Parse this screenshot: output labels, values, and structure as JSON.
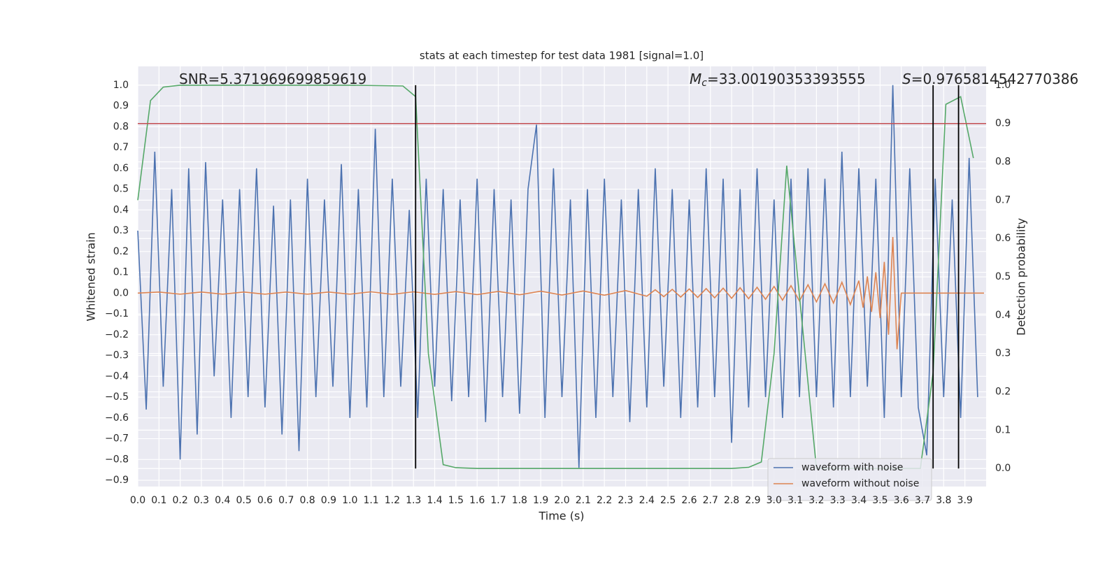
{
  "chart_data": {
    "type": "line",
    "title": "stats at each timestep for test data 1981 [signal=1.0]",
    "xlabel": "Time (s)",
    "ylabel": "Whitened strain",
    "y2label": "Detection probability",
    "xlim": [
      0,
      4.0
    ],
    "ylim": [
      -0.93,
      1.09
    ],
    "y2lim": [
      -0.047,
      1.049
    ],
    "grid": true,
    "legend": "lower right",
    "xticks": [
      {
        "value": 0,
        "label": "0.0"
      },
      0.1,
      0.2,
      0.3,
      0.4,
      0.5,
      0.6,
      0.7,
      0.8,
      0.9,
      {
        "value": 1,
        "label": "1.0"
      },
      1.1,
      1.2,
      1.3,
      1.4,
      1.5,
      1.6,
      1.7,
      1.8,
      1.9,
      {
        "value": 2,
        "label": "2.0"
      },
      2.1,
      2.2,
      2.3,
      2.4,
      2.5,
      2.6,
      2.7,
      2.8,
      2.9,
      {
        "value": 3,
        "label": "3.0"
      },
      3.1,
      3.2,
      3.3,
      3.4,
      3.5,
      3.6,
      3.7,
      3.8,
      3.9
    ],
    "yticks": [
      {
        "value": 1,
        "label": "1.0"
      },
      0.9,
      0.8,
      0.7,
      0.6,
      0.5,
      0.4,
      0.3,
      0.2,
      0.1,
      {
        "value": 0,
        "label": "0.0"
      },
      {
        "value": -0.1,
        "label": "−0.1"
      },
      {
        "value": -0.2,
        "label": "−0.2"
      },
      {
        "value": -0.3,
        "label": "−0.3"
      },
      {
        "value": -0.4,
        "label": "−0.4"
      },
      {
        "value": -0.5,
        "label": "−0.5"
      },
      {
        "value": -0.6,
        "label": "−0.6"
      },
      {
        "value": -0.7,
        "label": "−0.7"
      },
      {
        "value": -0.8,
        "label": "−0.8"
      },
      {
        "value": -0.9,
        "label": "−0.9"
      }
    ],
    "y2ticks": [
      {
        "value": 0,
        "label": "0.0"
      },
      0.1,
      0.2,
      0.3,
      0.4,
      0.5,
      0.6,
      0.7,
      0.8,
      0.9,
      {
        "value": 1,
        "label": "1.0"
      }
    ],
    "series": [
      {
        "name": "waveform with noise",
        "color": "#4c72b0",
        "x": [
          0,
          0.04,
          0.08,
          0.12,
          0.16,
          0.2,
          0.24,
          0.28,
          0.32,
          0.36,
          0.4,
          0.44,
          0.48,
          0.52,
          0.56,
          0.6,
          0.64,
          0.68,
          0.72,
          0.76,
          0.8,
          0.84,
          0.88,
          0.92,
          0.96,
          1.0,
          1.04,
          1.08,
          1.12,
          1.16,
          1.2,
          1.24,
          1.28,
          1.32,
          1.36,
          1.4,
          1.44,
          1.48,
          1.52,
          1.56,
          1.6,
          1.64,
          1.68,
          1.72,
          1.76,
          1.8,
          1.84,
          1.88,
          1.92,
          1.96,
          2.0,
          2.04,
          2.08,
          2.12,
          2.16,
          2.2,
          2.24,
          2.28,
          2.32,
          2.36,
          2.4,
          2.44,
          2.48,
          2.52,
          2.56,
          2.6,
          2.64,
          2.68,
          2.72,
          2.76,
          2.8,
          2.84,
          2.88,
          2.92,
          2.96,
          3.0,
          3.04,
          3.08,
          3.12,
          3.16,
          3.2,
          3.24,
          3.28,
          3.32,
          3.36,
          3.4,
          3.44,
          3.48,
          3.52,
          3.56,
          3.6,
          3.64,
          3.68,
          3.72,
          3.76,
          3.8,
          3.84,
          3.88,
          3.92,
          3.96
        ],
        "values": [
          0.3,
          -0.56,
          0.68,
          -0.45,
          0.5,
          -0.8,
          0.6,
          -0.68,
          0.63,
          -0.4,
          0.45,
          -0.6,
          0.5,
          -0.5,
          0.6,
          -0.55,
          0.42,
          -0.68,
          0.45,
          -0.76,
          0.55,
          -0.5,
          0.45,
          -0.45,
          0.62,
          -0.6,
          0.5,
          -0.55,
          0.79,
          -0.5,
          0.55,
          -0.45,
          0.4,
          -0.6,
          0.55,
          -0.45,
          0.5,
          -0.52,
          0.45,
          -0.5,
          0.55,
          -0.62,
          0.5,
          -0.5,
          0.45,
          -0.58,
          0.5,
          0.81,
          -0.6,
          0.6,
          -0.5,
          0.45,
          -0.84,
          0.5,
          -0.6,
          0.55,
          -0.5,
          0.45,
          -0.62,
          0.5,
          -0.55,
          0.6,
          -0.45,
          0.5,
          -0.6,
          0.45,
          -0.55,
          0.6,
          -0.5,
          0.55,
          -0.72,
          0.5,
          -0.55,
          0.6,
          -0.5,
          0.45,
          -0.6,
          0.55,
          -0.5,
          0.6,
          -0.5,
          0.55,
          -0.55,
          0.68,
          -0.5,
          0.6,
          -0.45,
          0.55,
          -0.6,
          1.0,
          -0.5,
          0.6,
          -0.55,
          -0.78,
          0.55,
          -0.5,
          0.45,
          -0.6,
          0.65,
          -0.5
        ]
      },
      {
        "name": "waveform without noise",
        "color": "#dd8452",
        "x": [
          0,
          0.1,
          0.2,
          0.3,
          0.4,
          0.5,
          0.6,
          0.7,
          0.8,
          0.9,
          1.0,
          1.1,
          1.2,
          1.3,
          1.4,
          1.5,
          1.6,
          1.7,
          1.8,
          1.9,
          2.0,
          2.1,
          2.2,
          2.3,
          2.4,
          2.44,
          2.48,
          2.52,
          2.56,
          2.6,
          2.64,
          2.68,
          2.72,
          2.76,
          2.8,
          2.84,
          2.88,
          2.92,
          2.96,
          3.0,
          3.04,
          3.08,
          3.12,
          3.16,
          3.2,
          3.24,
          3.28,
          3.32,
          3.36,
          3.4,
          3.42,
          3.44,
          3.46,
          3.48,
          3.5,
          3.52,
          3.54,
          3.56,
          3.58,
          3.6,
          3.99
        ],
        "values": [
          0,
          0.005,
          -0.005,
          0.005,
          -0.005,
          0.005,
          -0.005,
          0.005,
          -0.005,
          0.005,
          -0.005,
          0.006,
          -0.006,
          0.006,
          -0.006,
          0.007,
          -0.007,
          0.008,
          -0.008,
          0.009,
          -0.009,
          0.01,
          -0.01,
          0.012,
          -0.015,
          0.016,
          -0.017,
          0.018,
          -0.019,
          0.02,
          -0.021,
          0.022,
          -0.023,
          0.024,
          -0.025,
          0.026,
          -0.027,
          0.028,
          -0.03,
          0.032,
          -0.034,
          0.036,
          -0.038,
          0.04,
          -0.042,
          0.045,
          -0.048,
          0.052,
          -0.055,
          0.06,
          -0.07,
          0.08,
          -0.09,
          0.1,
          -0.12,
          0.15,
          -0.2,
          0.27,
          -0.27,
          0,
          0
        ]
      },
      {
        "color": "#55a868",
        "axis": "y2",
        "x": [
          0,
          0.06,
          0.12,
          0.2,
          0.5,
          1.0,
          1.25,
          1.31,
          1.37,
          1.44,
          1.5,
          1.6,
          2.0,
          2.5,
          2.8,
          2.88,
          2.94,
          3.0,
          3.06,
          3.12,
          3.2,
          3.69,
          3.75,
          3.81,
          3.88,
          3.94
        ],
        "values": [
          0.7,
          0.96,
          0.995,
          1.0,
          1.0,
          1.0,
          0.998,
          0.97,
          0.3,
          0.01,
          0.002,
          0.0,
          0.0,
          0.0,
          0.0,
          0.003,
          0.017,
          0.3,
          0.79,
          0.45,
          0.0,
          0.0,
          0.25,
          0.95,
          0.97,
          0.81
        ]
      }
    ],
    "threshold": {
      "value": 0.9,
      "axis": "y2",
      "color": "#c44e52"
    },
    "vlines": {
      "x": [
        1.31,
        3.75,
        3.87
      ],
      "color": "#000000"
    },
    "annotations": [
      {
        "text": "SNR=5.371969699859619"
      },
      {
        "symbol": "M",
        "subscript": "c",
        "text": "=33.00190353393555"
      },
      {
        "symbol": "S",
        "text": "=0.9765814542770386"
      }
    ]
  }
}
